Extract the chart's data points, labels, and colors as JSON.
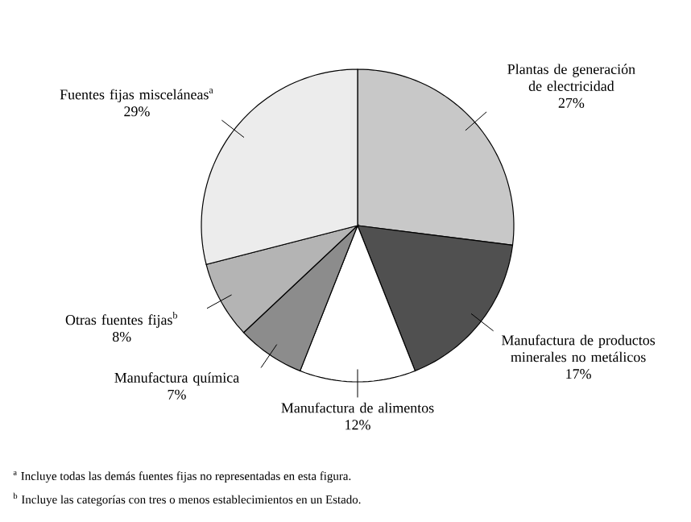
{
  "chart_data": {
    "type": "pie",
    "categories": [
      "Plantas de generación de electricidad",
      "Manufactura de productos minerales no metálicos",
      "Manufactura de alimentos",
      "Manufactura química",
      "Otras fuentes fijas$^{b}$",
      "Fuentes fijas misceláneas$^{a}$"
    ],
    "values": [
      27,
      17,
      12,
      7,
      8,
      29
    ],
    "value_labels": [
      "27%",
      "17%",
      "12%",
      "7%",
      "8%",
      "29%"
    ],
    "colors": [
      "#c8c8c8",
      "#505050",
      "#ffffff",
      "#8c8c8c",
      "#b4b4b4",
      "#ececec"
    ],
    "annotations": [
      "$^{a}$ Incluye todas las demás fuentes fijas no representadas en esta figura.",
      "$^{b}$ Incluye las categorías con tres o menos establecimientos en un Estado."
    ]
  }
}
